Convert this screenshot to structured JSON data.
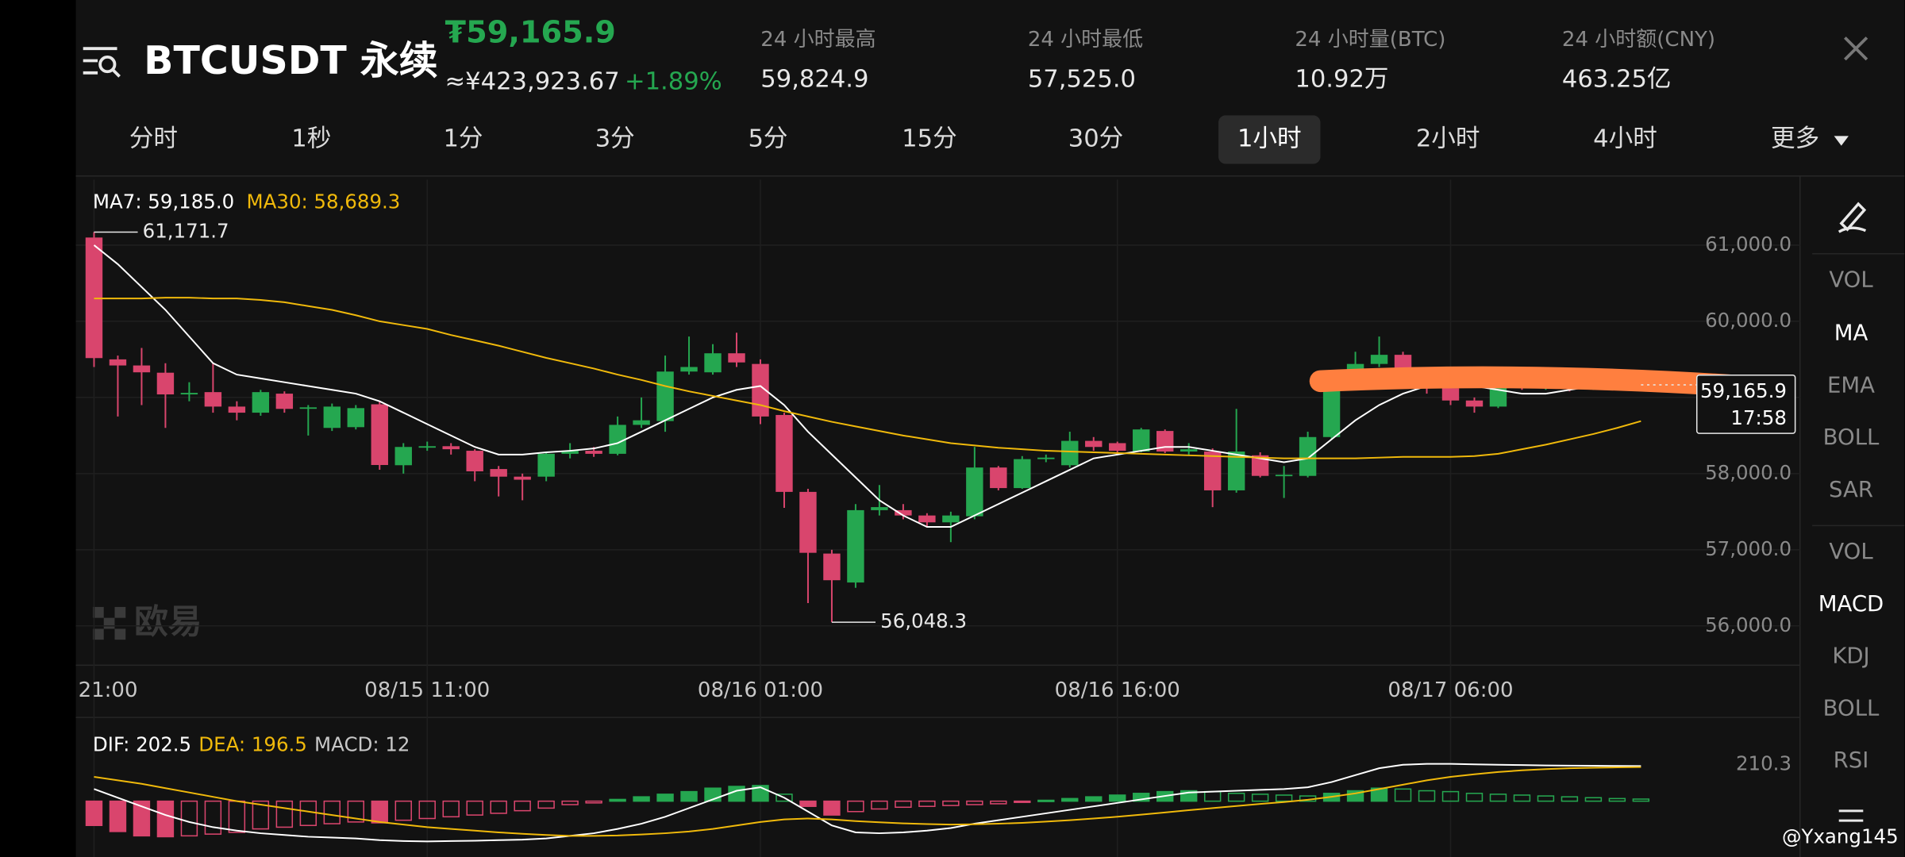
{
  "header": {
    "title": "BTCUSDT 永续",
    "price": "₮59,165.9",
    "price_cny": "≈¥423,923.67",
    "change": "+1.89%",
    "stats": [
      {
        "label": "24 小时最高",
        "value": "59,824.9"
      },
      {
        "label": "24 小时最低",
        "value": "57,525.0"
      },
      {
        "label": "24 小时量(BTC)",
        "value": "10.92万"
      },
      {
        "label": "24 小时额(CNY)",
        "value": "463.25亿"
      }
    ]
  },
  "timeframes": {
    "items": [
      "分时",
      "1秒",
      "1分",
      "3分",
      "5分",
      "15分",
      "30分",
      "1小时",
      "2小时",
      "4小时",
      "更多"
    ],
    "selected": 7
  },
  "indicators": {
    "main": [
      {
        "label": "VOL",
        "active": false
      },
      {
        "label": "MA",
        "active": true
      },
      {
        "label": "EMA",
        "active": false
      },
      {
        "label": "BOLL",
        "active": false
      },
      {
        "label": "SAR",
        "active": false
      }
    ],
    "sub": [
      {
        "label": "VOL",
        "active": false
      },
      {
        "label": "MACD",
        "active": true
      },
      {
        "label": "KDJ",
        "active": false
      },
      {
        "label": "BOLL",
        "active": false
      },
      {
        "label": "RSI",
        "active": false
      }
    ]
  },
  "watermark": "欧易",
  "user_watermark": "@Yxang145",
  "chart_data": [
    {
      "type": "candlestick",
      "up_color": "#25a750",
      "down_color": "#d9456d",
      "grid": true,
      "categories": [
        "21:00",
        null,
        null,
        null,
        null,
        null,
        null,
        null,
        null,
        null,
        null,
        null,
        null,
        null,
        "08/15 11:00",
        null,
        null,
        null,
        null,
        null,
        null,
        null,
        null,
        null,
        null,
        null,
        null,
        null,
        "08/16 01:00",
        null,
        null,
        null,
        null,
        null,
        null,
        null,
        null,
        null,
        null,
        null,
        null,
        null,
        null,
        "08/16 16:00",
        null,
        null,
        null,
        null,
        null,
        null,
        null,
        null,
        null,
        null,
        null,
        null,
        null,
        "08/17 06:00",
        null,
        null,
        null,
        null,
        null,
        null,
        null,
        null
      ],
      "open": [
        61100,
        59500,
        59420,
        59325,
        59040,
        59070,
        58880,
        58800,
        59050,
        58860,
        58600,
        58610,
        58910,
        58110,
        58340,
        58360,
        58300,
        58060,
        57960,
        57960,
        58260,
        58300,
        58260,
        58640,
        58690,
        59340,
        59330,
        59580,
        59440,
        58770,
        57760,
        56950,
        56570,
        57520,
        57520,
        57450,
        57360,
        57440,
        58080,
        57810,
        58190,
        58110,
        58430,
        58400,
        58290,
        58560,
        58290,
        58290,
        57780,
        58240,
        57970,
        57970,
        58480,
        59150,
        59440,
        59560,
        59360,
        59120,
        58960,
        58880,
        59200,
        59150,
        59180,
        59120,
        59200,
        59140
      ],
      "high": [
        61171.7,
        59550,
        59650,
        59450,
        59200,
        59450,
        58950,
        59100,
        59080,
        58900,
        58920,
        58900,
        58950,
        58400,
        58420,
        58400,
        58320,
        58100,
        58000,
        58280,
        58400,
        58350,
        58750,
        59000,
        59550,
        59800,
        59700,
        59850,
        59500,
        58800,
        57800,
        57000,
        57600,
        57850,
        57600,
        57480,
        57500,
        58350,
        58100,
        58230,
        58250,
        58550,
        58480,
        58420,
        58600,
        58580,
        58400,
        58330,
        58850,
        58280,
        58100,
        58550,
        59300,
        59600,
        59800,
        59600,
        59400,
        59200,
        59000,
        59250,
        59300,
        59250,
        59250,
        59280,
        59250,
        59220
      ],
      "low": [
        59400,
        58750,
        58900,
        58600,
        58950,
        58800,
        58700,
        58760,
        58800,
        58500,
        58560,
        58580,
        58050,
        58000,
        58300,
        58250,
        57900,
        57700,
        57650,
        57900,
        58200,
        58220,
        58240,
        58600,
        58550,
        59300,
        59300,
        59400,
        58650,
        57550,
        56300,
        56048.3,
        56500,
        57450,
        57400,
        57300,
        57100,
        57400,
        57780,
        57800,
        58150,
        58080,
        58300,
        58250,
        58280,
        58270,
        58250,
        57560,
        57750,
        57950,
        57680,
        57950,
        58450,
        59100,
        59400,
        59300,
        59050,
        58900,
        58800,
        58860,
        59100,
        59100,
        59080,
        59100,
        59100,
        59120
      ],
      "close": [
        59517,
        59420,
        59330,
        59040,
        59060,
        58880,
        58800,
        59070,
        58850,
        58870,
        58880,
        58860,
        58113,
        58350,
        58360,
        58320,
        58030,
        57960,
        57920,
        58260,
        58300,
        58260,
        58640,
        58700,
        59340,
        59400,
        59580,
        59460,
        58750,
        57760,
        56960,
        56600,
        57520,
        57560,
        57450,
        57360,
        57450,
        58080,
        57810,
        58190,
        58210,
        58430,
        58350,
        58300,
        58580,
        58290,
        58320,
        57780,
        58290,
        57970,
        57985,
        58480,
        59150,
        59440,
        59560,
        59360,
        59120,
        58960,
        58880,
        59200,
        59150,
        59180,
        59120,
        59200,
        59140,
        59165.9
      ],
      "series": [
        {
          "name": "MA7:",
          "last_label": "59,185.0",
          "color": "#ffffff",
          "values": [
            61000,
            60750,
            60450,
            60150,
            59800,
            59450,
            59300,
            59250,
            59200,
            59150,
            59100,
            59050,
            58950,
            58800,
            58650,
            58500,
            58350,
            58250,
            58250,
            58280,
            58300,
            58330,
            58400,
            58550,
            58700,
            58850,
            59000,
            59100,
            59150,
            58900,
            58550,
            58250,
            57950,
            57650,
            57450,
            57300,
            57300,
            57450,
            57600,
            57750,
            57900,
            58050,
            58200,
            58250,
            58300,
            58350,
            58350,
            58300,
            58250,
            58200,
            58150,
            58200,
            58450,
            58700,
            58900,
            59050,
            59150,
            59200,
            59150,
            59100,
            59050,
            59050,
            59100,
            59150,
            59180,
            59185.0
          ]
        },
        {
          "name": "MA30:",
          "last_label": "58,689.3",
          "color": "#f0b90b",
          "values": [
            60300,
            60300,
            60300,
            60310,
            60310,
            60300,
            60300,
            60280,
            60250,
            60200,
            60150,
            60080,
            60000,
            59950,
            59900,
            59820,
            59750,
            59680,
            59600,
            59520,
            59450,
            59380,
            59300,
            59230,
            59150,
            59080,
            59020,
            58960,
            58900,
            58820,
            58750,
            58680,
            58620,
            58560,
            58500,
            58450,
            58400,
            58370,
            58340,
            58320,
            58300,
            58290,
            58280,
            58270,
            58260,
            58250,
            58240,
            58230,
            58220,
            58210,
            58200,
            58200,
            58200,
            58200,
            58210,
            58220,
            58220,
            58220,
            58230,
            58260,
            58320,
            58380,
            58450,
            58520,
            58600,
            58689.3
          ]
        }
      ],
      "ylim": [
        55500,
        61860
      ],
      "yticks": [
        {
          "value": 56000,
          "label": "56,000.0"
        },
        {
          "value": 57000,
          "label": "57,000.0"
        },
        {
          "value": 58000,
          "label": "58,000.0"
        },
        {
          "value": 59000,
          "label": "59,000.0"
        },
        {
          "value": 60000,
          "label": "60,000.0"
        },
        {
          "value": 61000,
          "label": "61,000.0"
        }
      ],
      "high_label": "61,171.7",
      "low_label": "56,048.3",
      "price_label": "59,165.9",
      "countdown": "17:58"
    },
    {
      "type": "macd",
      "up_color": "#25a750",
      "down_color": "#d9456d",
      "bars": {
        "name": "MACD:",
        "values": [
          -140,
          -175,
          -200,
          -205,
          -200,
          -190,
          -180,
          -160,
          -150,
          -140,
          -130,
          -120,
          -125,
          -110,
          -100,
          -90,
          -80,
          -70,
          -55,
          -40,
          -20,
          -10,
          10,
          25,
          40,
          55,
          75,
          85,
          90,
          40,
          -30,
          -80,
          -60,
          -45,
          -35,
          -30,
          -25,
          -20,
          -15,
          -5,
          5,
          15,
          25,
          35,
          45,
          55,
          60,
          55,
          45,
          40,
          35,
          30,
          45,
          60,
          75,
          70,
          60,
          55,
          45,
          40,
          35,
          30,
          25,
          20,
          15,
          12
        ]
      },
      "series": [
        {
          "name": "DIF:",
          "color": "#ffffff",
          "values": [
            70,
            20,
            -30,
            -80,
            -120,
            -150,
            -170,
            -185,
            -195,
            -205,
            -210,
            -215,
            -225,
            -230,
            -232,
            -230,
            -228,
            -225,
            -222,
            -215,
            -200,
            -185,
            -160,
            -130,
            -90,
            -40,
            10,
            60,
            80,
            20,
            -60,
            -140,
            -180,
            -185,
            -180,
            -170,
            -155,
            -130,
            -110,
            -90,
            -70,
            -50,
            -30,
            -10,
            10,
            30,
            50,
            55,
            60,
            65,
            70,
            80,
            110,
            150,
            190,
            210,
            215,
            215,
            212,
            210,
            208,
            206,
            205,
            204,
            203,
            202.5
          ]
        },
        {
          "name": "DEA:",
          "color": "#f0b90b",
          "values": [
            140,
            120,
            100,
            75,
            50,
            25,
            0,
            -20,
            -40,
            -60,
            -80,
            -100,
            -120,
            -135,
            -150,
            -160,
            -170,
            -180,
            -188,
            -195,
            -200,
            -200,
            -198,
            -192,
            -185,
            -175,
            -160,
            -140,
            -120,
            -105,
            -100,
            -105,
            -115,
            -122,
            -128,
            -132,
            -135,
            -133,
            -130,
            -125,
            -118,
            -110,
            -100,
            -90,
            -78,
            -65,
            -52,
            -40,
            -28,
            -16,
            -5,
            8,
            25,
            45,
            70,
            95,
            120,
            140,
            155,
            168,
            178,
            185,
            190,
            193,
            195,
            196.5
          ]
        }
      ],
      "ylim": [
        -322,
        420
      ],
      "yticks": [
        210.3
      ]
    }
  ]
}
